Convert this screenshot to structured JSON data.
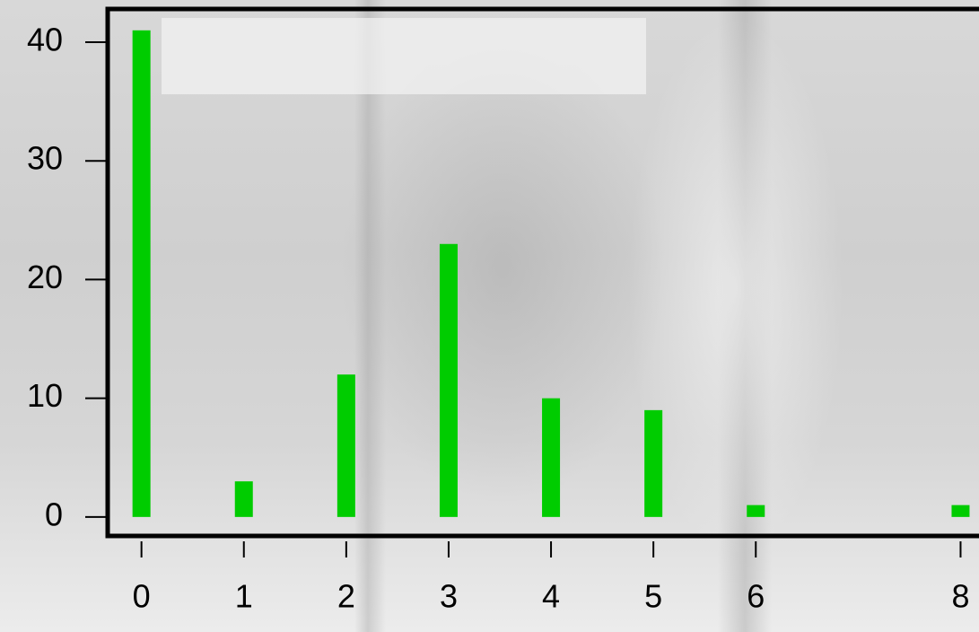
{
  "chart_data": {
    "type": "bar",
    "x": [
      0,
      1,
      2,
      3,
      4,
      5,
      6,
      8
    ],
    "values": [
      41,
      3,
      12,
      23,
      10,
      9,
      1,
      1
    ],
    "color": "#00cc00",
    "xlim": [
      -0.33,
      8.18
    ],
    "xticks": [
      0,
      1,
      2,
      3,
      4,
      5,
      6,
      8
    ],
    "ylim": [
      -1.6,
      42.8
    ],
    "yticks": [
      0,
      10,
      20,
      30,
      40
    ]
  }
}
